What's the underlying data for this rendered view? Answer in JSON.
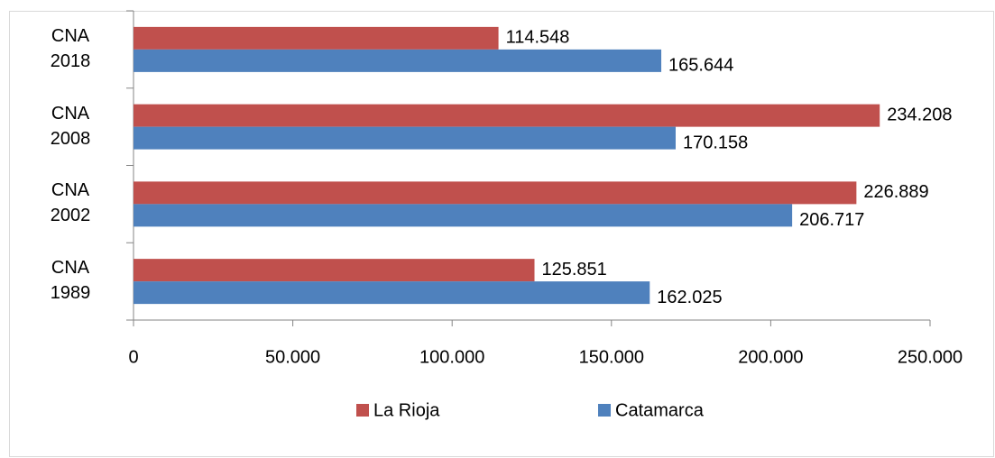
{
  "chart_data": {
    "type": "hbar",
    "categories": [
      "CNA 2018",
      "CNA 2008",
      "CNA 2002",
      "CNA 1989"
    ],
    "series": [
      {
        "name": "La Rioja",
        "color": "#c0504d",
        "values": [
          114548,
          234208,
          226889,
          125851
        ],
        "value_labels": [
          "114.548",
          "234.208",
          "226.889",
          "125.851"
        ]
      },
      {
        "name": "Catamarca",
        "color": "#4f81bd",
        "values": [
          165644,
          170158,
          206717,
          162025
        ],
        "value_labels": [
          "165.644",
          "170.158",
          "206.717",
          "162.025"
        ]
      }
    ],
    "xlim": [
      0,
      250000
    ],
    "xticks": [
      0,
      {
        "value": 50000,
        "label": "50.000"
      },
      {
        "value": 100000,
        "label": "100.000"
      },
      {
        "value": 150000,
        "label": "150.000"
      },
      {
        "value": 200000,
        "label": "200.000"
      },
      {
        "value": 250000,
        "label": "250.000"
      }
    ],
    "legend": "bottom"
  }
}
